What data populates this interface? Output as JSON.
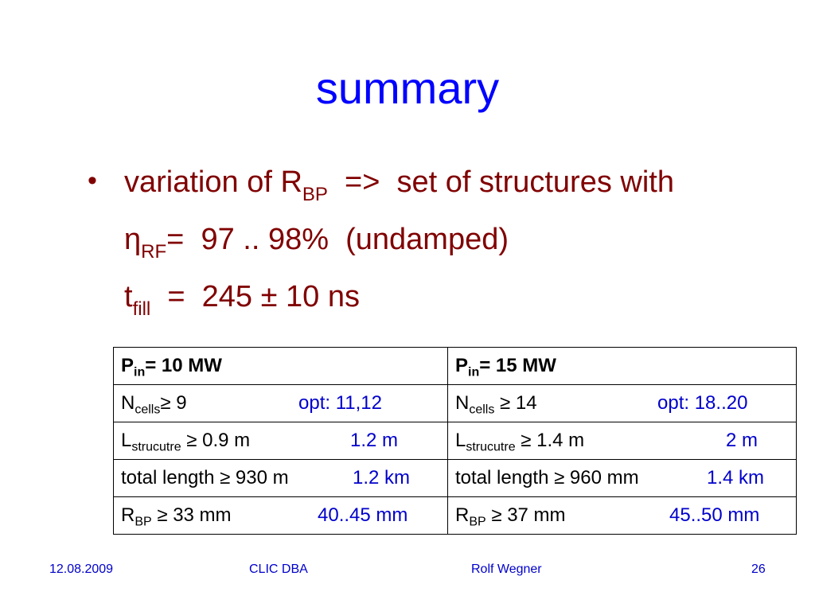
{
  "title": "summary",
  "bullets": {
    "line1": {
      "prefix": "variation of R",
      "sub": "BP",
      "suffix": "  =>  set of structures with"
    },
    "line2": {
      "prefix": "η",
      "sub": "RF",
      "suffix": "=  97 .. 98%  (undamped)"
    },
    "line3": {
      "prefix": "t",
      "sub": "fill",
      "suffix": "  =  245 ± 10 ns"
    }
  },
  "table": {
    "headers": [
      {
        "prefix": "P",
        "sub": "in",
        "suffix": "= 10 MW"
      },
      {
        "prefix": "P",
        "sub": "in",
        "suffix": "= 15 MW"
      }
    ],
    "rows": [
      [
        {
          "prefix": "N",
          "sub": "cells",
          "suffix": "≥ 9",
          "opt": "opt: 11,12"
        },
        {
          "prefix": "N",
          "sub": "cells",
          "suffix": " ≥ 14",
          "opt": "opt: 18..20"
        }
      ],
      [
        {
          "prefix": "L",
          "sub": "strucutre",
          "suffix": " ≥ 0.9 m",
          "opt": "1.2 m"
        },
        {
          "prefix": "L",
          "sub": "strucutre",
          "suffix": " ≥ 1.4 m",
          "opt": "2 m"
        }
      ],
      [
        {
          "prefix": "total length",
          "sub": "",
          "suffix": " ≥ 930 m",
          "opt": "1.2 km"
        },
        {
          "prefix": "total length",
          "sub": "",
          "suffix": " ≥ 960 mm",
          "opt": "1.4 km"
        }
      ],
      [
        {
          "prefix": "R",
          "sub": "BP",
          "suffix": " ≥ 33 mm",
          "opt": "40..45 mm"
        },
        {
          "prefix": "R",
          "sub": "BP",
          "suffix": " ≥ 37 mm",
          "opt": "45..50 mm"
        }
      ]
    ]
  },
  "footer": {
    "date": "12.08.2009",
    "event": "CLIC DBA",
    "author": "Rolf Wegner",
    "page": "26"
  },
  "colors": {
    "title": "#0000ff",
    "bullet_text": "#800000",
    "opt_values": "#0000cc",
    "footer": "#0000cc"
  }
}
